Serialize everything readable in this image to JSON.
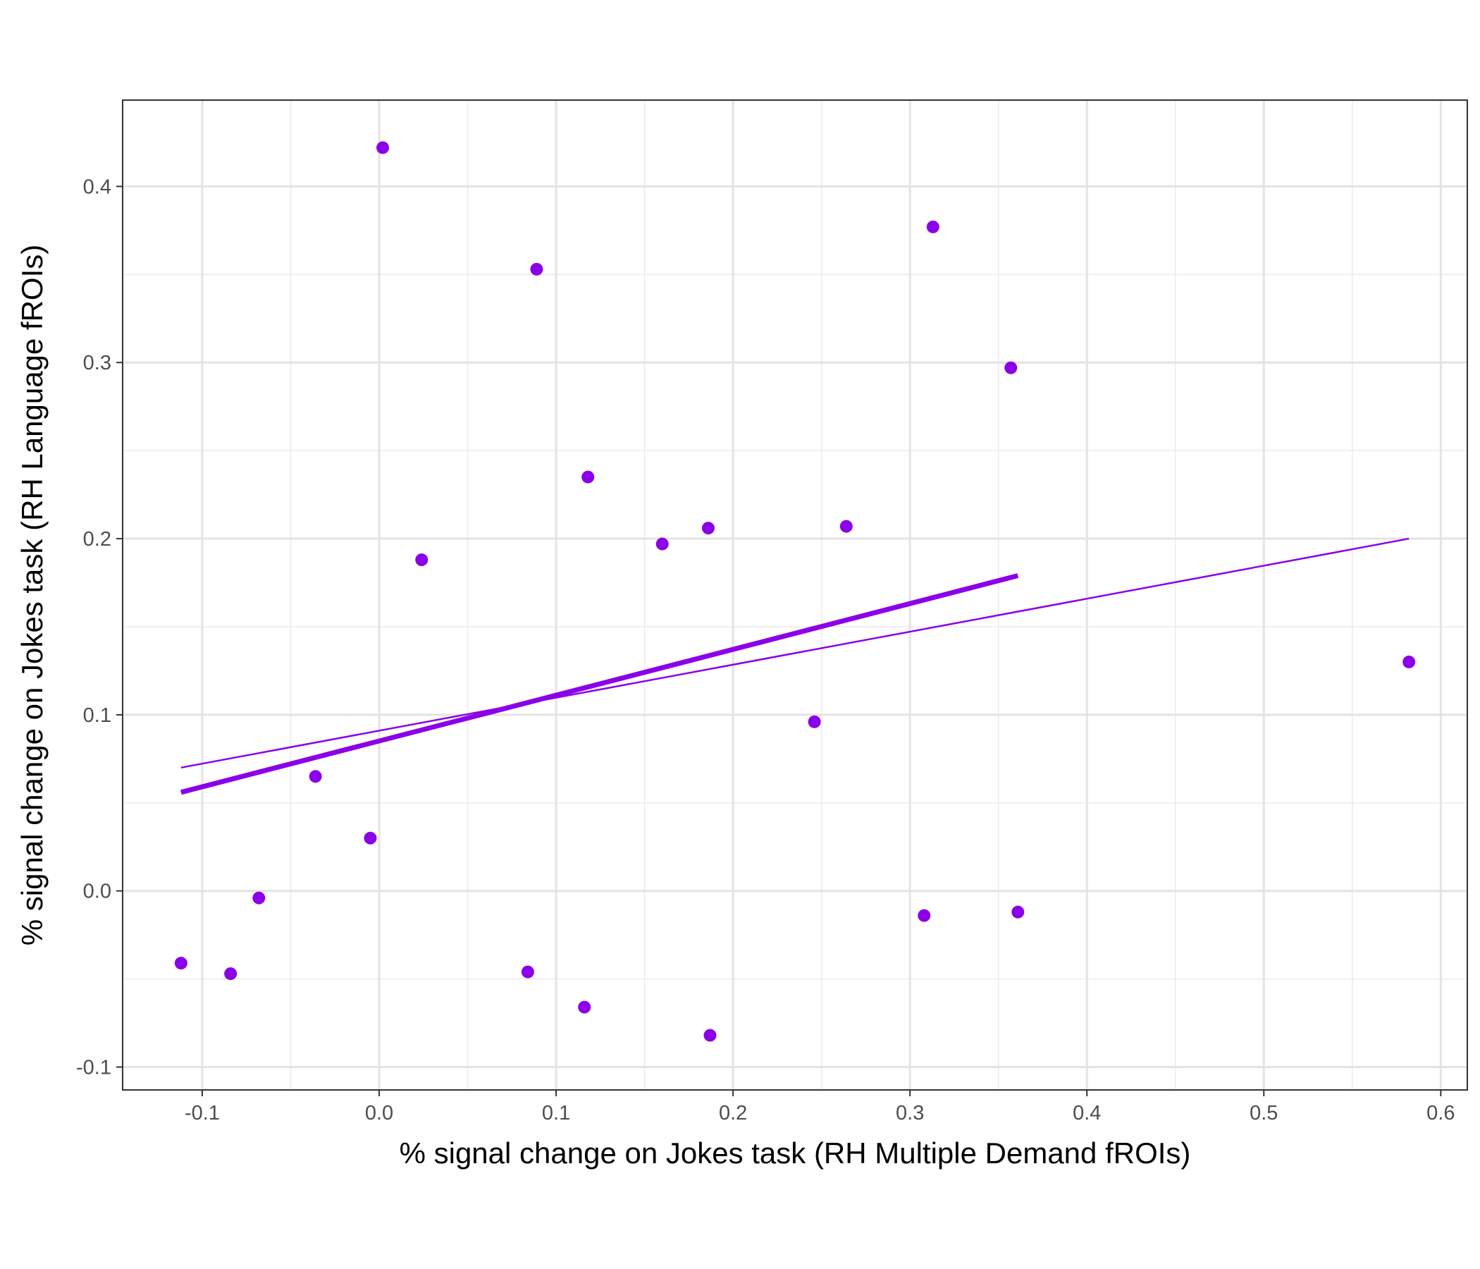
{
  "chart_data": {
    "type": "scatter",
    "title": "",
    "xlabel": "% signal change on Jokes task (RH Multiple Demand fROIs)",
    "ylabel": "% signal change on Jokes task (RH Language fROIs)",
    "xlim": [
      -0.145,
      0.615
    ],
    "ylim": [
      -0.113,
      0.449
    ],
    "x_ticks": [
      -0.1,
      0.0,
      0.1,
      0.2,
      0.3,
      0.4,
      0.5,
      0.6
    ],
    "x_tick_labels": [
      "-0.1",
      "0.0",
      "0.1",
      "0.2",
      "0.3",
      "0.4",
      "0.5",
      "0.6"
    ],
    "y_ticks": [
      -0.1,
      0.0,
      0.1,
      0.2,
      0.3,
      0.4
    ],
    "y_tick_labels": [
      "-0.1",
      "0.0",
      "0.1",
      "0.2",
      "0.3",
      "0.4"
    ],
    "grid": true,
    "color": "#8B00E8",
    "points": [
      {
        "x": -0.112,
        "y": -0.041
      },
      {
        "x": -0.084,
        "y": -0.047
      },
      {
        "x": -0.068,
        "y": -0.004
      },
      {
        "x": -0.036,
        "y": 0.065
      },
      {
        "x": -0.005,
        "y": 0.03
      },
      {
        "x": 0.002,
        "y": 0.422
      },
      {
        "x": 0.024,
        "y": 0.188
      },
      {
        "x": 0.084,
        "y": -0.046
      },
      {
        "x": 0.089,
        "y": 0.353
      },
      {
        "x": 0.116,
        "y": -0.066
      },
      {
        "x": 0.118,
        "y": 0.235
      },
      {
        "x": 0.16,
        "y": 0.197
      },
      {
        "x": 0.186,
        "y": 0.206
      },
      {
        "x": 0.187,
        "y": -0.082
      },
      {
        "x": 0.246,
        "y": 0.096
      },
      {
        "x": 0.264,
        "y": 0.207
      },
      {
        "x": 0.308,
        "y": -0.014
      },
      {
        "x": 0.313,
        "y": 0.377
      },
      {
        "x": 0.357,
        "y": 0.297
      },
      {
        "x": 0.361,
        "y": -0.012
      },
      {
        "x": 0.582,
        "y": 0.13
      }
    ],
    "fit_lines": [
      {
        "x": [
          -0.112,
          0.361
        ],
        "y": [
          0.056,
          0.179
        ],
        "weight": "thick"
      },
      {
        "x": [
          -0.112,
          0.582
        ],
        "y": [
          0.07,
          0.2
        ],
        "weight": "thin"
      }
    ]
  }
}
